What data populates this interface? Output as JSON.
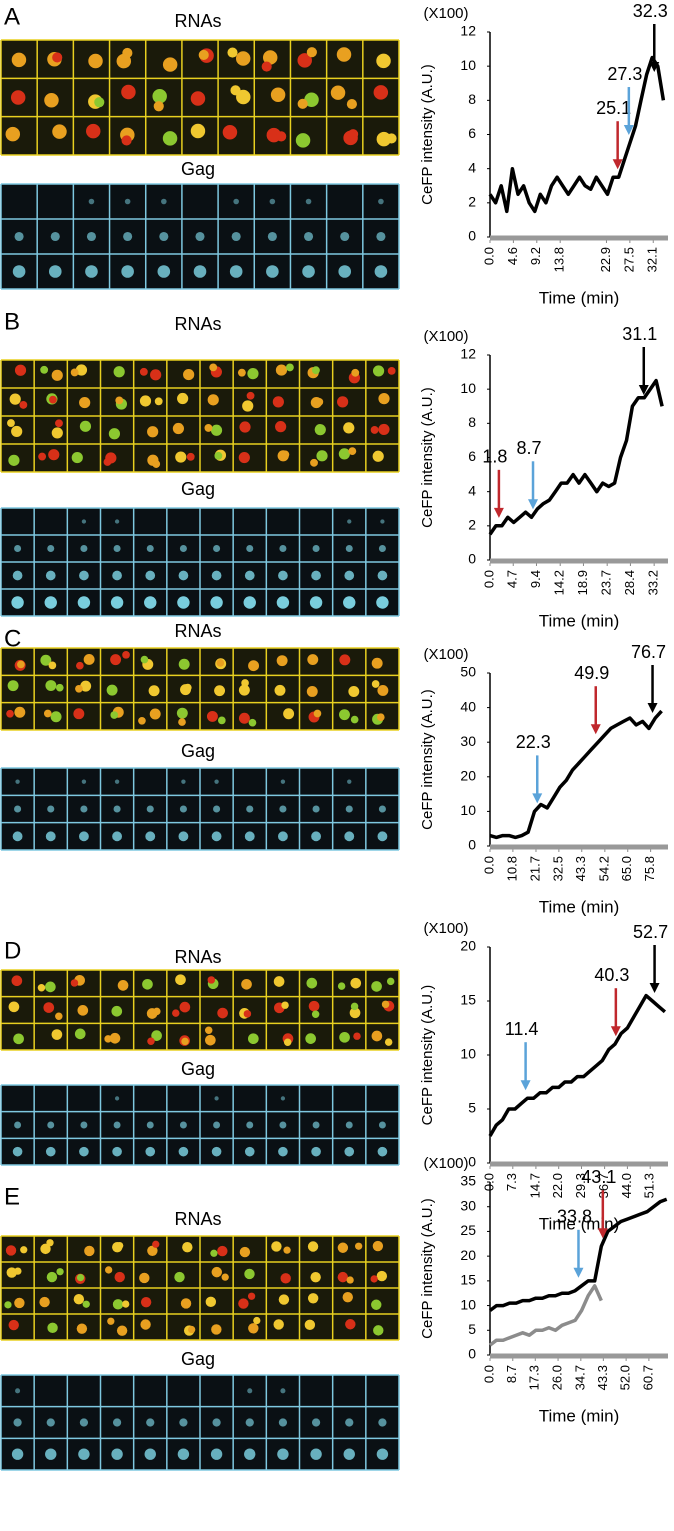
{
  "chart_data": [
    {
      "panel": "A",
      "image_labels": [
        "RNAs",
        "Gag"
      ],
      "type": "line",
      "y_unit": "(X100)",
      "ylabel": "CeFP intensity (A.U.)",
      "xlabel": "Time (min)",
      "x": [
        0,
        1.1,
        2.2,
        3.3,
        4.4,
        5.5,
        6.6,
        7.7,
        8.8,
        9.9,
        11,
        12.1,
        13.2,
        14.3,
        15.4,
        16.5,
        17.6,
        18.7,
        19.8,
        20.9,
        22,
        23.1,
        24.2,
        25.3,
        26.4,
        27.5,
        28.6,
        29.7,
        30.8,
        31.9,
        33,
        34.1
      ],
      "series": [
        {
          "color": "#000000",
          "values": [
            2.5,
            2,
            3,
            1.5,
            4,
            2.5,
            3,
            2,
            1.5,
            2.5,
            2,
            3,
            3.5,
            3,
            2.5,
            3,
            3.5,
            3,
            2.8,
            3.5,
            3,
            2.5,
            3.5,
            3.5,
            4.5,
            5.5,
            6.5,
            8,
            9.5,
            10.5,
            10,
            8
          ]
        }
      ],
      "xlim": [
        0,
        35
      ],
      "ylim": [
        0,
        12
      ],
      "xticks": [
        {
          "value": 0,
          "label": "0.0"
        },
        4.6,
        9.2,
        13.8,
        22.9,
        27.5,
        32.1
      ],
      "yticks": [
        0,
        2,
        4,
        6,
        8,
        10,
        12
      ],
      "annotations": [
        {
          "x": 25.1,
          "color": "#c0282d"
        },
        {
          "x": 27.3,
          "color": "#5ba3d9"
        },
        {
          "x": 32.3,
          "color": "#000000"
        }
      ]
    },
    {
      "panel": "B",
      "image_labels": [
        "RNAs",
        "Gag"
      ],
      "type": "line",
      "y_unit": "(X100)",
      "ylabel": "CeFP intensity (A.U.)",
      "xlabel": "Time (min)",
      "x": [
        0,
        1.2,
        2.4,
        3.6,
        4.8,
        6,
        7.2,
        8.4,
        9.6,
        10.8,
        12,
        13.2,
        14.4,
        15.6,
        16.8,
        18,
        19.2,
        20.4,
        21.6,
        22.8,
        24,
        25.2,
        26.4,
        27.6,
        28.8,
        30,
        31.2,
        32.4,
        33.6,
        34.8
      ],
      "series": [
        {
          "color": "#000000",
          "values": [
            1.5,
            2,
            2,
            2.5,
            2.2,
            2.5,
            2.8,
            2.5,
            3,
            3.3,
            3.5,
            4,
            4.5,
            4.5,
            5,
            4.5,
            5,
            4.5,
            4,
            4.5,
            4.3,
            4.5,
            6,
            7,
            9,
            9.5,
            9.5,
            10,
            10.5,
            9
          ]
        }
      ],
      "xlim": [
        0,
        36
      ],
      "ylim": [
        0,
        12
      ],
      "xticks": [
        {
          "value": 0,
          "label": "0.0"
        },
        4.7,
        9.4,
        14.2,
        18.9,
        23.7,
        28.4,
        33.2
      ],
      "yticks": [
        0,
        2,
        4,
        6,
        8,
        10,
        12
      ],
      "annotations": [
        {
          "x": 1.8,
          "color": "#c0282d"
        },
        {
          "x": 8.7,
          "color": "#5ba3d9"
        },
        {
          "x": 31.1,
          "color": "#000000"
        }
      ]
    },
    {
      "panel": "C",
      "image_labels": [
        "RNAs",
        "Gag"
      ],
      "type": "line",
      "y_unit": "(X100)",
      "ylabel": "CeFP intensity (A.U.)",
      "xlabel": "Time (min)",
      "x": [
        0,
        3,
        6,
        9,
        12,
        15,
        18,
        21,
        24,
        27,
        30,
        33,
        36,
        39,
        42,
        45,
        48,
        51,
        54,
        57,
        60,
        63,
        66,
        69,
        72,
        75,
        78,
        81
      ],
      "series": [
        {
          "color": "#000000",
          "values": [
            3,
            2.5,
            3,
            3,
            2.5,
            3,
            4,
            10,
            12,
            11,
            14,
            17,
            19,
            22,
            24,
            26,
            28,
            30,
            32,
            34,
            35,
            36,
            37,
            35,
            36,
            34,
            37,
            39
          ]
        }
      ],
      "xlim": [
        0,
        84
      ],
      "ylim": [
        0,
        50
      ],
      "xticks": [
        {
          "value": 0,
          "label": "0.0"
        },
        10.8,
        21.7,
        32.5,
        43.3,
        54.2,
        {
          "value": 65,
          "label": "65.0"
        },
        75.8
      ],
      "yticks": [
        0,
        10,
        20,
        30,
        40,
        50
      ],
      "annotations": [
        {
          "x": 22.3,
          "color": "#5ba3d9"
        },
        {
          "x": 49.9,
          "color": "#c0282d"
        },
        {
          "x": 76.7,
          "color": "#000000"
        }
      ]
    },
    {
      "panel": "D",
      "image_labels": [
        "RNAs",
        "Gag"
      ],
      "type": "line",
      "y_unit": "(X100)",
      "ylabel": "CeFP intensity (A.U.)",
      "xlabel": "Time (min)",
      "x": [
        0,
        2,
        4,
        6,
        8,
        10,
        12,
        14,
        16,
        18,
        20,
        22,
        24,
        26,
        28,
        30,
        32,
        34,
        36,
        38,
        40,
        42,
        44,
        46,
        48,
        50,
        52,
        54,
        56
      ],
      "series": [
        {
          "color": "#000000",
          "values": [
            2.5,
            3.5,
            4,
            5,
            5,
            5.5,
            6,
            6,
            6.5,
            6.5,
            7,
            7,
            7.5,
            7.5,
            8,
            8,
            8.5,
            9,
            9.5,
            10.5,
            11,
            12,
            12.5,
            13.5,
            14.5,
            15.5,
            15,
            14.5,
            14
          ]
        }
      ],
      "xlim": [
        0,
        57
      ],
      "ylim": [
        0,
        20
      ],
      "xticks": [
        {
          "value": 0,
          "label": "0.0"
        },
        7.3,
        14.7,
        {
          "value": 22,
          "label": "22.0"
        },
        29.3,
        36.7,
        {
          "value": 44,
          "label": "44.0"
        },
        51.3
      ],
      "yticks": [
        0,
        5,
        10,
        15,
        20
      ],
      "annotations": [
        {
          "x": 11.4,
          "color": "#5ba3d9"
        },
        {
          "x": 40.3,
          "color": "#c0282d"
        },
        {
          "x": 52.7,
          "color": "#000000"
        }
      ]
    },
    {
      "panel": "E",
      "image_labels": [
        "RNAs",
        "Gag"
      ],
      "type": "line",
      "y_unit": "(X100)",
      "ylabel": "CeFP intensity (A.U.)",
      "xlabel": "Time (min)",
      "x": [
        0,
        2.5,
        5,
        7.5,
        10,
        12.5,
        15,
        17.5,
        20,
        22.5,
        25,
        27.5,
        30,
        32.5,
        35,
        37.5,
        40,
        42.5,
        45,
        47.5,
        50,
        52.5,
        55,
        57.5,
        60,
        62.5,
        65,
        67.5
      ],
      "series": [
        {
          "color": "#000000",
          "values": [
            9,
            10,
            10,
            10.5,
            10.5,
            11,
            11,
            11.5,
            11.5,
            12,
            12,
            12.5,
            12.5,
            13,
            14,
            15,
            15,
            22,
            25,
            26,
            27,
            27.5,
            28,
            28.5,
            29,
            30,
            31,
            31.5
          ]
        },
        {
          "color": "#8c8c8c",
          "values": [
            2,
            3,
            3,
            3.5,
            4,
            4.5,
            4,
            5,
            5,
            5.5,
            5,
            6,
            6.5,
            7,
            9,
            12,
            14,
            11,
            null,
            null,
            null,
            null,
            null,
            null,
            null,
            null,
            null,
            null
          ]
        }
      ],
      "xlim": [
        0,
        68
      ],
      "ylim": [
        0,
        35
      ],
      "xticks": [
        {
          "value": 0,
          "label": "0.0"
        },
        8.7,
        17.3,
        {
          "value": 26,
          "label": "26.0"
        },
        34.7,
        43.3,
        {
          "value": 52,
          "label": "52.0"
        },
        60.7
      ],
      "yticks": [
        0,
        5,
        10,
        15,
        20,
        25,
        30,
        35
      ],
      "annotations": [
        {
          "x": 33.8,
          "color": "#5ba3d9"
        },
        {
          "x": 43.1,
          "color": "#c0282d"
        }
      ]
    }
  ]
}
